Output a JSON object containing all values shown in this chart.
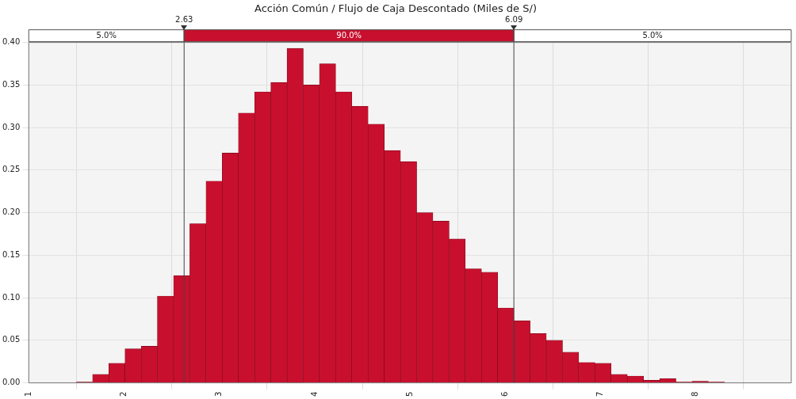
{
  "chart_data": {
    "type": "histogram",
    "title": "Acción Común / Flujo de Caja Descontado (Miles de S/)",
    "bins": [
      1.5,
      1.67,
      1.84,
      2.01,
      2.18,
      2.35,
      2.52,
      2.69,
      2.86,
      3.03,
      3.2,
      3.37,
      3.54,
      3.71,
      3.88,
      4.05,
      4.22,
      4.39,
      4.56,
      4.73,
      4.9,
      5.07,
      5.24,
      5.41,
      5.58,
      5.75,
      5.92,
      6.09,
      6.26,
      6.43,
      6.6,
      6.77,
      6.94,
      7.11,
      7.28,
      7.45,
      7.62,
      7.79,
      7.96,
      8.13,
      8.3
    ],
    "values": [
      0.001,
      0.01,
      0.023,
      0.04,
      0.043,
      0.102,
      0.126,
      0.187,
      0.237,
      0.27,
      0.317,
      0.342,
      0.353,
      0.393,
      0.35,
      0.375,
      0.342,
      0.325,
      0.304,
      0.273,
      0.26,
      0.2,
      0.19,
      0.169,
      0.134,
      0.13,
      0.088,
      0.073,
      0.058,
      0.05,
      0.036,
      0.024,
      0.023,
      0.01,
      0.008,
      0.003,
      0.005,
      0.001,
      0.002,
      0.001
    ],
    "color": "#c8102e",
    "xlim": [
      1,
      9
    ],
    "xticks": [
      1,
      2,
      3,
      4,
      5,
      6,
      7,
      8
    ],
    "ylim": [
      0,
      0.4
    ],
    "yticks": [
      {
        "value": 0,
        "label": "0.00"
      },
      {
        "value": 0.05,
        "label": "0.05"
      },
      {
        "value": 0.1,
        "label": "0.10"
      },
      {
        "value": 0.15,
        "label": "0.15"
      },
      {
        "value": 0.2,
        "label": "0.20"
      },
      {
        "value": 0.25,
        "label": "0.25"
      },
      {
        "value": 0.3,
        "label": "0.30"
      },
      {
        "value": 0.35,
        "label": "0.35"
      },
      {
        "value": 0.4,
        "label": "0.40"
      }
    ],
    "grid": true,
    "ref_lines": [
      {
        "axis": "x",
        "value": 2.63,
        "label": "2.63"
      },
      {
        "axis": "x",
        "value": 6.09,
        "label": "6.09"
      }
    ],
    "annotations": [
      "5.0%",
      "90.0%",
      "5.0%"
    ]
  }
}
